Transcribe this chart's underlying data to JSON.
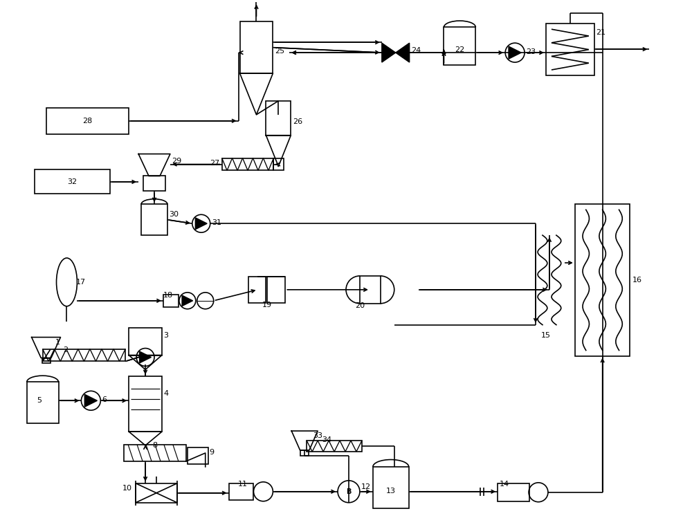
{
  "bg_color": "#ffffff",
  "line_color": "#000000",
  "lw": 1.2,
  "fs": 8.0
}
